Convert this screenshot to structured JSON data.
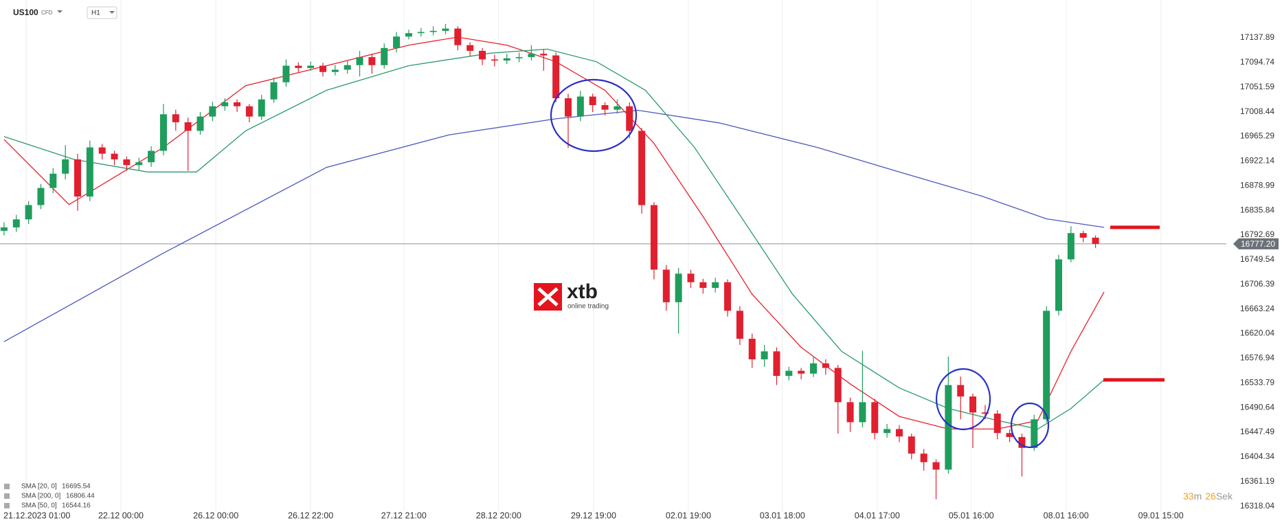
{
  "toolbar": {
    "symbol": "US100",
    "instrument": "CFD",
    "timeframe": "H1"
  },
  "chart_data": {
    "type": "candlestick",
    "up_color": "#1f9d5c",
    "down_color": "#e0202f",
    "x": [
      0,
      1,
      2,
      3,
      4,
      5,
      6,
      7,
      8,
      9,
      10,
      11,
      12,
      13,
      14,
      15,
      16,
      17,
      18,
      19,
      20,
      21,
      22,
      23,
      24,
      25,
      26,
      27,
      28,
      29,
      30,
      31,
      32,
      33,
      34,
      35,
      36,
      37,
      38,
      39,
      40,
      41,
      42,
      43,
      44,
      45,
      46,
      47,
      48,
      49,
      50,
      51,
      52,
      53,
      54,
      55,
      56,
      57,
      58,
      59,
      60,
      61,
      62,
      63,
      64,
      65,
      66,
      67,
      68,
      69,
      70,
      71,
      72,
      73,
      74,
      75,
      76,
      77,
      78,
      79,
      80,
      81,
      82,
      83,
      84,
      85,
      86,
      87,
      88,
      89
    ],
    "open": [
      16800,
      16806,
      16820,
      16845,
      16875,
      16900,
      16925,
      16860,
      16946,
      16935,
      16925,
      16915,
      16920,
      16940,
      17004,
      16990,
      16975,
      17000,
      17018,
      17025,
      17018,
      17000,
      17030,
      17060,
      17089,
      17085,
      17089,
      17078,
      17082,
      17090,
      17104,
      17090,
      17120,
      17140,
      17146,
      17148,
      17150,
      17154,
      17125,
      17115,
      17100,
      17098,
      17102,
      17104,
      17110,
      17107,
      17032,
      17000,
      17035,
      17020,
      17012,
      17018,
      16975,
      16845,
      16732,
      16675,
      16725,
      16710,
      16700,
      16710,
      16660,
      16611,
      16575,
      16589,
      16546,
      16555,
      16550,
      16568,
      16560,
      16500,
      16465,
      16500,
      16446,
      16453,
      16440,
      16410,
      16395,
      16382,
      16530,
      16510,
      16482,
      16480,
      16446,
      16439,
      16420,
      16470,
      16660,
      16750,
      16796,
      16788
    ],
    "high": [
      16815,
      16828,
      16852,
      16882,
      16910,
      16950,
      16935,
      16958,
      16952,
      16940,
      16930,
      16928,
      16948,
      17022,
      17012,
      16998,
      17008,
      17026,
      17032,
      17030,
      17022,
      17038,
      17068,
      17100,
      17095,
      17096,
      17094,
      17090,
      17098,
      17115,
      17110,
      17128,
      17148,
      17152,
      17155,
      17158,
      17162,
      17158,
      17130,
      17120,
      17108,
      17110,
      17112,
      17125,
      17118,
      17112,
      17040,
      17045,
      17040,
      17025,
      17030,
      17025,
      16980,
      16850,
      16740,
      16735,
      16732,
      16716,
      16718,
      16715,
      16668,
      16620,
      16600,
      16596,
      16562,
      16560,
      16580,
      16575,
      16565,
      16508,
      16590,
      16506,
      16462,
      16460,
      16445,
      16418,
      16400,
      16580,
      16545,
      16515,
      16495,
      16486,
      16452,
      16445,
      16478,
      16668,
      16758,
      16808,
      16800,
      16792
    ],
    "low": [
      16792,
      16798,
      16812,
      16838,
      16866,
      16890,
      16835,
      16852,
      16925,
      16915,
      16905,
      16906,
      16912,
      16932,
      16975,
      16905,
      16968,
      16992,
      17010,
      17008,
      16990,
      16994,
      17024,
      17052,
      17078,
      17080,
      17070,
      17072,
      17075,
      17070,
      17075,
      17084,
      17112,
      17135,
      17140,
      17142,
      17144,
      17116,
      17105,
      17090,
      17088,
      17092,
      17095,
      17098,
      17080,
      17025,
      16945,
      16992,
      17008,
      17002,
      17005,
      16962,
      16830,
      16715,
      16660,
      16620,
      16700,
      16690,
      16692,
      16650,
      16600,
      16560,
      16562,
      16530,
      16538,
      16540,
      16544,
      16548,
      16445,
      16448,
      16456,
      16435,
      16438,
      16430,
      16400,
      16380,
      16330,
      16375,
      16470,
      16420,
      16470,
      16435,
      16430,
      16370,
      16415,
      16465,
      16652,
      16745,
      16780,
      16770
    ],
    "close": [
      16806,
      16820,
      16845,
      16875,
      16900,
      16925,
      16860,
      16946,
      16935,
      16925,
      16915,
      16920,
      16940,
      17004,
      16990,
      16975,
      17000,
      17018,
      17025,
      17018,
      17000,
      17030,
      17060,
      17089,
      17085,
      17089,
      17078,
      17082,
      17090,
      17104,
      17090,
      17120,
      17140,
      17146,
      17148,
      17150,
      17154,
      17125,
      17115,
      17100,
      17098,
      17102,
      17104,
      17110,
      17107,
      17032,
      17000,
      17035,
      17020,
      17012,
      17018,
      16975,
      16845,
      16732,
      16675,
      16725,
      16710,
      16700,
      16710,
      16660,
      16611,
      16575,
      16589,
      16546,
      16555,
      16550,
      16568,
      16560,
      16500,
      16465,
      16500,
      16446,
      16453,
      16440,
      16410,
      16395,
      16382,
      16530,
      16510,
      16482,
      16480,
      16446,
      16439,
      16420,
      16470,
      16660,
      16750,
      16796,
      16788,
      16777
    ],
    "series": [
      {
        "name": "SMA [20, 0]",
        "last_value": 16695.54,
        "color": "#e8202a",
        "x": [
          0,
          5.3,
          9.7,
          13,
          19.7,
          26.3,
          33,
          37,
          41,
          45,
          49,
          53,
          57,
          61,
          65,
          69,
          73,
          77,
          81,
          84.3,
          87,
          89.7
        ],
        "values": [
          16960,
          16846,
          16903,
          16946,
          17054,
          17089,
          17125,
          17139,
          17125,
          17096,
          17046,
          16953,
          16825,
          16689,
          16596,
          16532,
          16475,
          16453,
          16453,
          16468,
          16589,
          16693
        ]
      },
      {
        "name": "SMA [200, 0]",
        "last_value": 16806.44,
        "color": "#4a58c0",
        "x": [
          0,
          13,
          26.3,
          36.3,
          45,
          51.7,
          58.3,
          66.3,
          73,
          79.7,
          85,
          89.7
        ],
        "values": [
          16606,
          16761,
          16911,
          16968,
          16996,
          17011,
          16989,
          16946,
          16903,
          16861,
          16821,
          16806
        ]
      },
      {
        "name": "SMA [50, 0]",
        "last_value": 16544.16,
        "color": "#2a9a6a",
        "x": [
          0,
          5.7,
          11.7,
          15.7,
          19.7,
          26.3,
          33,
          39.7,
          44.3,
          48.3,
          52.3,
          56.3,
          60.3,
          64.3,
          68.3,
          73,
          77,
          81,
          84.3,
          87,
          89.7
        ],
        "values": [
          16965,
          16925,
          16903,
          16903,
          16975,
          17046,
          17089,
          17111,
          17118,
          17096,
          17046,
          16946,
          16818,
          16689,
          16589,
          16525,
          16489,
          16468,
          16453,
          16489,
          16539
        ]
      }
    ],
    "levels": [
      16806,
      16539
    ],
    "level_color": "#e3141e",
    "current_price": {
      "value": 16777.2,
      "label": "16777.20"
    },
    "xlim": [
      -0.33,
      99.67
    ],
    "ylim": [
      16308,
      17204
    ],
    "yticks": [
      17137.89,
      17094.74,
      17051.59,
      17008.44,
      16965.29,
      16922.14,
      16878.99,
      16835.84,
      16792.69,
      16749.54,
      16706.39,
      16663.24,
      16620.04,
      16576.94,
      16533.79,
      16490.64,
      16447.49,
      16404.34,
      16361.19,
      16318.04
    ],
    "xticks": [
      {
        "value": 1.8,
        "label": "21.12.2023  01:00"
      },
      {
        "value": 9.53,
        "label": "22.12  00:00"
      },
      {
        "value": 17.27,
        "label": "26.12  00:00"
      },
      {
        "value": 25,
        "label": "26.12  22:00"
      },
      {
        "value": 32.6,
        "label": "27.12  21:00"
      },
      {
        "value": 40.33,
        "label": "28.12  20:00"
      },
      {
        "value": 48.07,
        "label": "29.12  19:00"
      },
      {
        "value": 55.8,
        "label": "02.01  19:00"
      },
      {
        "value": 63.47,
        "label": "03.01  18:00"
      },
      {
        "value": 71.2,
        "label": "04.01  17:00"
      },
      {
        "value": 78.87,
        "label": "05.01  16:00"
      },
      {
        "value": 86.6,
        "label": "08.01  16:00"
      },
      {
        "value": 94.33,
        "label": "09.01  15:00"
      }
    ],
    "grid": true
  },
  "watermark": {
    "brand": "xtb",
    "tagline": "online trading"
  },
  "timer": {
    "minutes": 33,
    "minutes_unit": "m",
    "seconds": 26,
    "seconds_unit": "Sek"
  }
}
